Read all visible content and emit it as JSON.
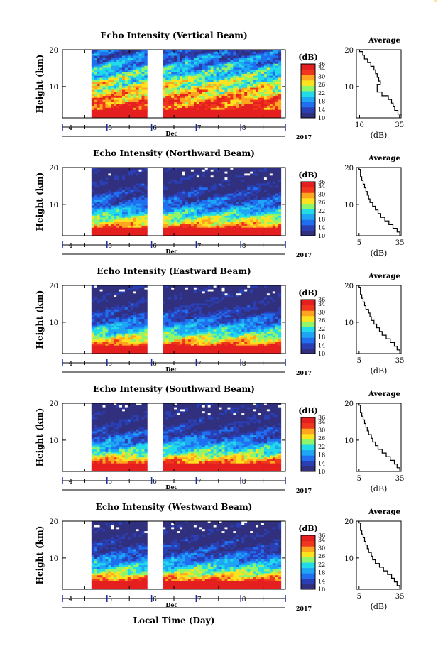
{
  "figure": {
    "footer_label": "Local Time (Day)",
    "corner_mark_color": "#f3e6a8"
  },
  "colorbar": {
    "unit": "(dB)",
    "tick_labels": [
      "36",
      "34",
      "30",
      "26",
      "22",
      "18",
      "14",
      "10"
    ],
    "range": [
      10,
      36
    ],
    "colormap": "jet",
    "colors": [
      "#30307f",
      "#2b3fb5",
      "#1f6ff0",
      "#1ea6f5",
      "#22dbe8",
      "#8ff56b",
      "#ffe21f",
      "#ffa51f",
      "#f0361c",
      "#e51f1f"
    ]
  },
  "time_axis": {
    "tick_labels": [
      "4",
      "5",
      "6",
      "7",
      "8"
    ],
    "unit_label": "Dec",
    "year_label": "2017",
    "range_days": [
      3.5,
      8.5
    ],
    "data_gap_days": [
      [
        3.5,
        4.15
      ],
      [
        5.4,
        5.75
      ]
    ],
    "data_end_day": 8.4
  },
  "chart_data": [
    {
      "type": "heatmap",
      "title": "Echo Intensity (Vertical Beam)",
      "ylabel": "Height (km)",
      "yticks": [
        "20",
        "10"
      ],
      "ylim": [
        1.5,
        20
      ],
      "xlabel": "Dec",
      "zlabel": "(dB)",
      "zlim": [
        10,
        36
      ],
      "average": {
        "type": "line",
        "title": "Average",
        "xlabel": "(dB)",
        "xticks": [
          "10",
          "35"
        ],
        "xlim": [
          8,
          36
        ],
        "ylim": [
          1.5,
          20
        ],
        "height_km": [
          20,
          19,
          18,
          17,
          16,
          15,
          14,
          13,
          12,
          11,
          10,
          9,
          8,
          7,
          6,
          5,
          4,
          3,
          2
        ],
        "db": [
          10,
          12,
          13,
          15,
          17,
          19,
          20,
          21,
          22,
          23,
          21,
          21,
          24,
          28,
          30,
          31,
          32,
          34,
          36
        ]
      }
    },
    {
      "type": "heatmap",
      "title": "Echo Intensity (Northward Beam)",
      "ylabel": "Height (km)",
      "yticks": [
        "20",
        "10"
      ],
      "ylim": [
        1.5,
        20
      ],
      "xlabel": "Dec",
      "zlabel": "(dB)",
      "zlim": [
        10,
        36
      ],
      "average": {
        "type": "line",
        "title": "Average",
        "xlabel": "(dB)",
        "xticks": [
          "5",
          "35"
        ],
        "xlim": [
          3,
          36
        ],
        "ylim": [
          1.5,
          20
        ],
        "height_km": [
          20,
          19,
          18,
          17,
          16,
          15,
          14,
          13,
          12,
          11,
          10,
          9,
          8,
          7,
          6,
          5,
          4,
          3,
          2
        ],
        "db": [
          5,
          6,
          6,
          7,
          8,
          9,
          10,
          11,
          12,
          13,
          15,
          17,
          19,
          21,
          24,
          27,
          30,
          33,
          35
        ]
      }
    },
    {
      "type": "heatmap",
      "title": "Echo Intensity (Eastward Beam)",
      "ylabel": "Height (km)",
      "yticks": [
        "20",
        "10"
      ],
      "ylim": [
        1.5,
        20
      ],
      "xlabel": "Dec",
      "zlabel": "(dB)",
      "zlim": [
        10,
        36
      ],
      "average": {
        "type": "line",
        "title": "Average",
        "xlabel": "(dB)",
        "xticks": [
          "5",
          "35"
        ],
        "xlim": [
          3,
          36
        ],
        "ylim": [
          1.5,
          20
        ],
        "height_km": [
          20,
          19,
          18,
          17,
          16,
          15,
          14,
          13,
          12,
          11,
          10,
          9,
          8,
          7,
          6,
          5,
          4,
          3,
          2
        ],
        "db": [
          5,
          6,
          6,
          7,
          8,
          9,
          10,
          12,
          13,
          14,
          16,
          18,
          20,
          22,
          25,
          28,
          31,
          33,
          35
        ]
      }
    },
    {
      "type": "heatmap",
      "title": "Echo Intensity (Southward Beam)",
      "ylabel": "Height (km)",
      "yticks": [
        "20",
        "10"
      ],
      "ylim": [
        1.5,
        20
      ],
      "xlabel": "Dec",
      "zlabel": "(dB)",
      "zlim": [
        10,
        36
      ],
      "average": {
        "type": "line",
        "title": "Average",
        "xlabel": "(dB)",
        "xticks": [
          "5",
          "35"
        ],
        "xlim": [
          3,
          36
        ],
        "ylim": [
          1.5,
          20
        ],
        "height_km": [
          20,
          19,
          18,
          17,
          16,
          15,
          14,
          13,
          12,
          11,
          10,
          9,
          8,
          7,
          6,
          5,
          4,
          3,
          2
        ],
        "db": [
          5,
          6,
          6,
          7,
          8,
          9,
          10,
          11,
          12,
          14,
          15,
          17,
          19,
          22,
          25,
          28,
          31,
          33,
          35
        ]
      }
    },
    {
      "type": "heatmap",
      "title": "Echo Intensity (Westward Beam)",
      "ylabel": "Height (km)",
      "yticks": [
        "20",
        "10"
      ],
      "ylim": [
        1.5,
        20
      ],
      "xlabel": "Dec",
      "zlabel": "(dB)",
      "zlim": [
        10,
        36
      ],
      "average": {
        "type": "line",
        "title": "Average",
        "xlabel": "(dB)",
        "xticks": [
          "5",
          "35"
        ],
        "xlim": [
          3,
          36
        ],
        "ylim": [
          1.5,
          20
        ],
        "height_km": [
          20,
          19,
          18,
          17,
          16,
          15,
          14,
          13,
          12,
          11,
          10,
          9,
          8,
          7,
          6,
          5,
          4,
          3,
          2
        ],
        "db": [
          5,
          6,
          6,
          7,
          8,
          9,
          10,
          11,
          12,
          14,
          15,
          17,
          20,
          23,
          26,
          29,
          31,
          33,
          35
        ]
      }
    }
  ]
}
